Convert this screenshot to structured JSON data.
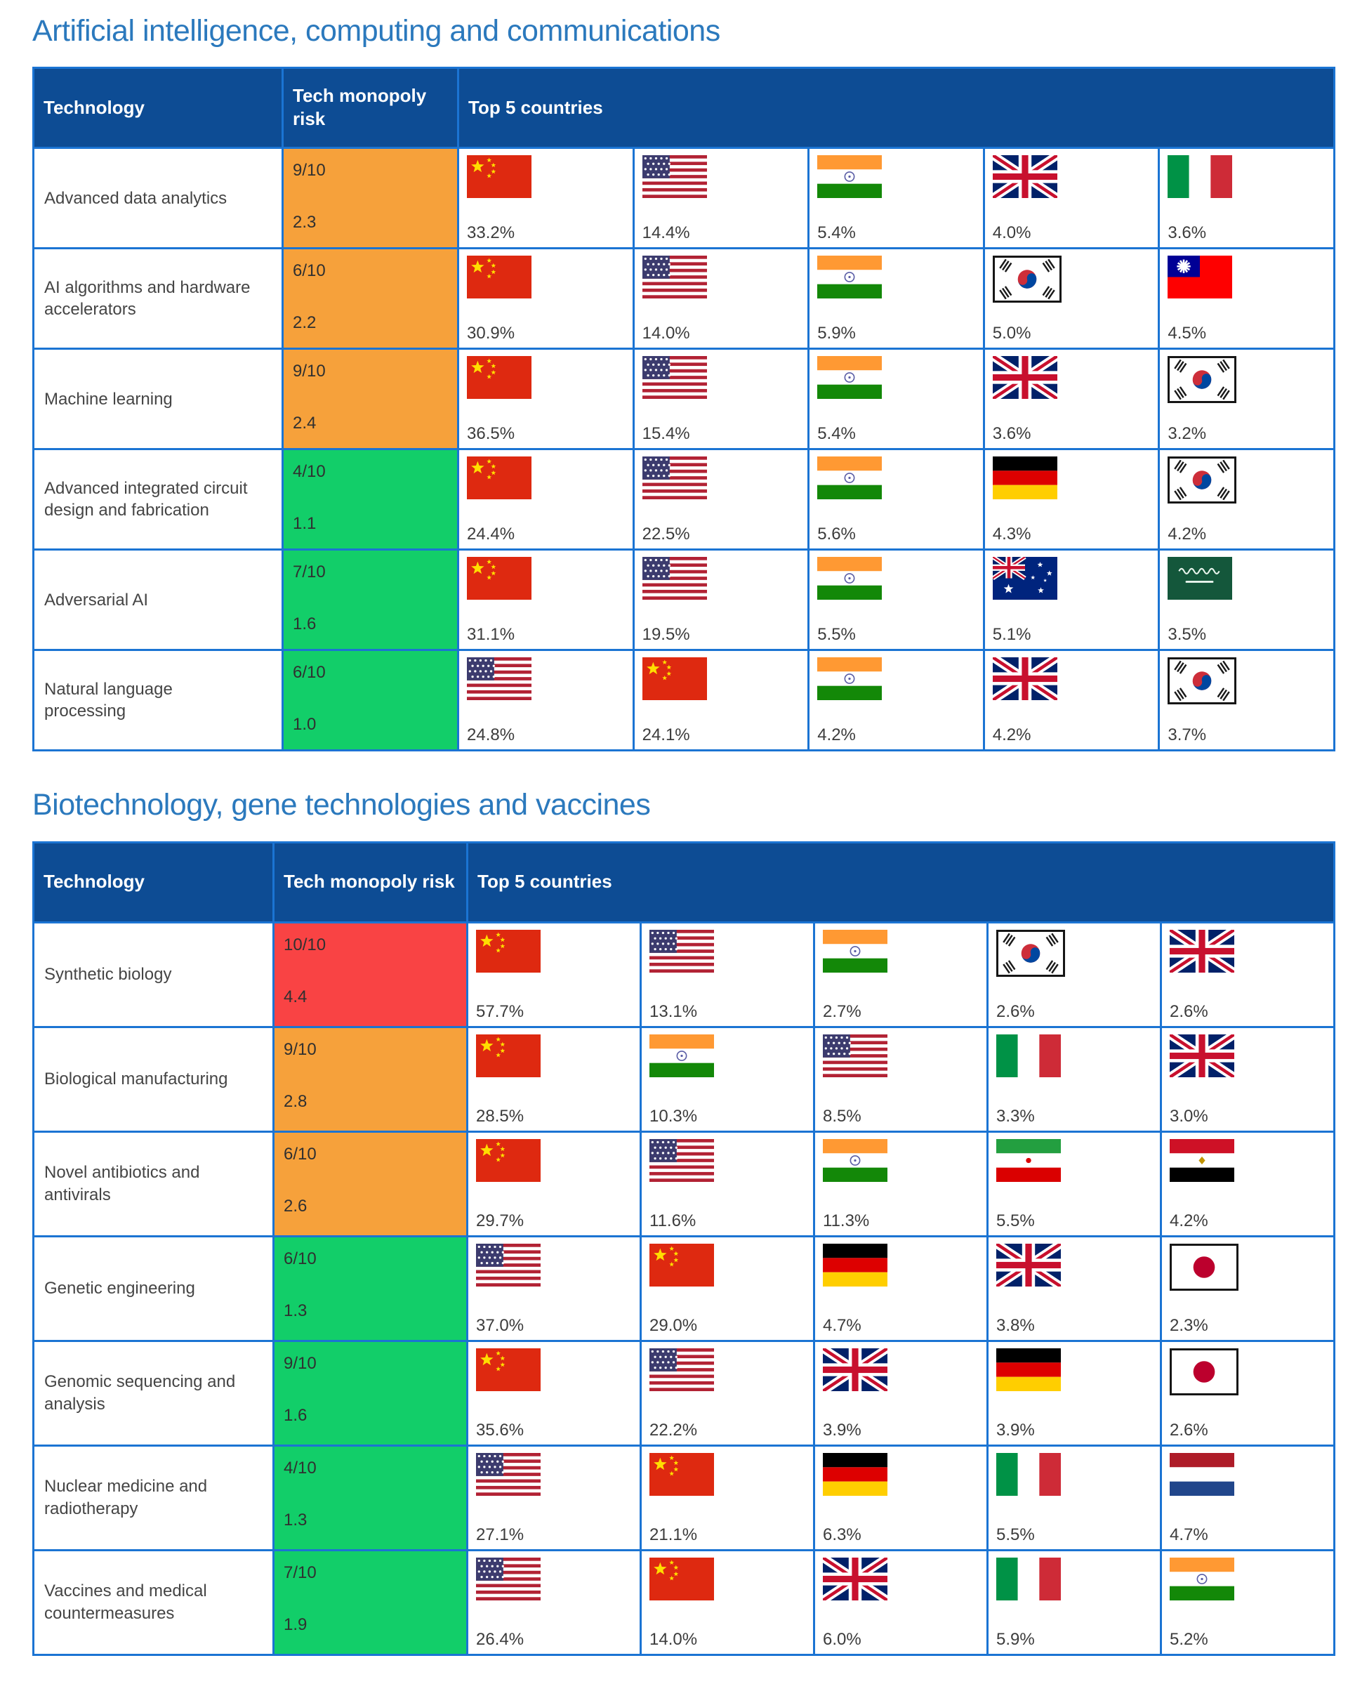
{
  "colors": {
    "header_bg": "#0D4C94",
    "border": "#1B74D3",
    "title": "#2B79BD",
    "text": "#454545",
    "risk_levels": {
      "orange": "#F6A13B",
      "green": "#12CE69",
      "red": "#F94344"
    }
  },
  "chart_data": [
    {
      "type": "table",
      "title": "Artificial intelligence, computing and communications",
      "headers": {
        "technology": "Technology",
        "risk": "Tech monopoly risk",
        "countries": "Top 5 countries"
      },
      "rows": [
        {
          "technology": "Advanced data analytics",
          "risk_score": "9/10",
          "risk_value": 2.3,
          "risk_color": "orange",
          "top5": [
            {
              "country": "China",
              "code": "cn",
              "share_pct": 33.2
            },
            {
              "country": "United States",
              "code": "us",
              "share_pct": 14.4
            },
            {
              "country": "India",
              "code": "in",
              "share_pct": 5.4
            },
            {
              "country": "United Kingdom",
              "code": "gb",
              "share_pct": 4.0
            },
            {
              "country": "Italy",
              "code": "it",
              "share_pct": 3.6
            }
          ]
        },
        {
          "technology": "AI algorithms and hardware accelerators",
          "risk_score": "6/10",
          "risk_value": 2.2,
          "risk_color": "orange",
          "top5": [
            {
              "country": "China",
              "code": "cn",
              "share_pct": 30.9
            },
            {
              "country": "United States",
              "code": "us",
              "share_pct": 14.0
            },
            {
              "country": "India",
              "code": "in",
              "share_pct": 5.9
            },
            {
              "country": "South Korea",
              "code": "kr",
              "share_pct": 5.0
            },
            {
              "country": "Taiwan",
              "code": "tw",
              "share_pct": 4.5
            }
          ]
        },
        {
          "technology": "Machine learning",
          "risk_score": "9/10",
          "risk_value": 2.4,
          "risk_color": "orange",
          "top5": [
            {
              "country": "China",
              "code": "cn",
              "share_pct": 36.5
            },
            {
              "country": "United States",
              "code": "us",
              "share_pct": 15.4
            },
            {
              "country": "India",
              "code": "in",
              "share_pct": 5.4
            },
            {
              "country": "United Kingdom",
              "code": "gb",
              "share_pct": 3.6
            },
            {
              "country": "South Korea",
              "code": "kr",
              "share_pct": 3.2
            }
          ]
        },
        {
          "technology": "Advanced integrated circuit design and fabrication",
          "risk_score": "4/10",
          "risk_value": 1.1,
          "risk_color": "green",
          "top5": [
            {
              "country": "China",
              "code": "cn",
              "share_pct": 24.4
            },
            {
              "country": "United States",
              "code": "us",
              "share_pct": 22.5
            },
            {
              "country": "India",
              "code": "in",
              "share_pct": 5.6
            },
            {
              "country": "Germany",
              "code": "de",
              "share_pct": 4.3
            },
            {
              "country": "South Korea",
              "code": "kr",
              "share_pct": 4.2
            }
          ]
        },
        {
          "technology": "Adversarial AI",
          "risk_score": "7/10",
          "risk_value": 1.6,
          "risk_color": "green",
          "top5": [
            {
              "country": "China",
              "code": "cn",
              "share_pct": 31.1
            },
            {
              "country": "United States",
              "code": "us",
              "share_pct": 19.5
            },
            {
              "country": "India",
              "code": "in",
              "share_pct": 5.5
            },
            {
              "country": "Australia",
              "code": "au",
              "share_pct": 5.1
            },
            {
              "country": "Saudi Arabia",
              "code": "sa",
              "share_pct": 3.5
            }
          ]
        },
        {
          "technology": "Natural language processing",
          "risk_score": "6/10",
          "risk_value": 1.0,
          "risk_color": "green",
          "top5": [
            {
              "country": "United States",
              "code": "us",
              "share_pct": 24.8
            },
            {
              "country": "China",
              "code": "cn",
              "share_pct": 24.1
            },
            {
              "country": "India",
              "code": "in",
              "share_pct": 4.2
            },
            {
              "country": "United Kingdom",
              "code": "gb",
              "share_pct": 4.2
            },
            {
              "country": "South Korea",
              "code": "kr",
              "share_pct": 3.7
            }
          ]
        }
      ]
    },
    {
      "type": "table",
      "title": "Biotechnology, gene technologies and vaccines",
      "headers": {
        "technology": "Technology",
        "risk": "Tech monopoly risk",
        "countries": "Top 5 countries"
      },
      "rows": [
        {
          "technology": "Synthetic biology",
          "risk_score": "10/10",
          "risk_value": 4.4,
          "risk_color": "red",
          "top5": [
            {
              "country": "China",
              "code": "cn",
              "share_pct": 57.7
            },
            {
              "country": "United States",
              "code": "us",
              "share_pct": 13.1
            },
            {
              "country": "India",
              "code": "in",
              "share_pct": 2.7
            },
            {
              "country": "South Korea",
              "code": "kr",
              "share_pct": 2.6
            },
            {
              "country": "United Kingdom",
              "code": "gb",
              "share_pct": 2.6
            }
          ]
        },
        {
          "technology": "Biological manufacturing",
          "risk_score": "9/10",
          "risk_value": 2.8,
          "risk_color": "orange",
          "top5": [
            {
              "country": "China",
              "code": "cn",
              "share_pct": 28.5
            },
            {
              "country": "India",
              "code": "in",
              "share_pct": 10.3
            },
            {
              "country": "United States",
              "code": "us",
              "share_pct": 8.5
            },
            {
              "country": "Italy",
              "code": "it",
              "share_pct": 3.3
            },
            {
              "country": "United Kingdom",
              "code": "gb",
              "share_pct": 3.0
            }
          ]
        },
        {
          "technology": "Novel antibiotics and antivirals",
          "risk_score": "6/10",
          "risk_value": 2.6,
          "risk_color": "orange",
          "top5": [
            {
              "country": "China",
              "code": "cn",
              "share_pct": 29.7
            },
            {
              "country": "United States",
              "code": "us",
              "share_pct": 11.6
            },
            {
              "country": "India",
              "code": "in",
              "share_pct": 11.3
            },
            {
              "country": "Iran",
              "code": "ir",
              "share_pct": 5.5
            },
            {
              "country": "Egypt",
              "code": "eg",
              "share_pct": 4.2
            }
          ]
        },
        {
          "technology": "Genetic engineering",
          "risk_score": "6/10",
          "risk_value": 1.3,
          "risk_color": "green",
          "top5": [
            {
              "country": "United States",
              "code": "us",
              "share_pct": 37.0
            },
            {
              "country": "China",
              "code": "cn",
              "share_pct": 29.0
            },
            {
              "country": "Germany",
              "code": "de",
              "share_pct": 4.7
            },
            {
              "country": "United Kingdom",
              "code": "gb",
              "share_pct": 3.8
            },
            {
              "country": "Japan",
              "code": "jp",
              "share_pct": 2.3
            }
          ]
        },
        {
          "technology": "Genomic sequencing and analysis",
          "risk_score": "9/10",
          "risk_value": 1.6,
          "risk_color": "green",
          "top5": [
            {
              "country": "China",
              "code": "cn",
              "share_pct": 35.6
            },
            {
              "country": "United States",
              "code": "us",
              "share_pct": 22.2
            },
            {
              "country": "United Kingdom",
              "code": "gb",
              "share_pct": 3.9
            },
            {
              "country": "Germany",
              "code": "de",
              "share_pct": 3.9
            },
            {
              "country": "Japan",
              "code": "jp",
              "share_pct": 2.6
            }
          ]
        },
        {
          "technology": "Nuclear medicine and radiotherapy",
          "risk_score": "4/10",
          "risk_value": 1.3,
          "risk_color": "green",
          "top5": [
            {
              "country": "United States",
              "code": "us",
              "share_pct": 27.1
            },
            {
              "country": "China",
              "code": "cn",
              "share_pct": 21.1
            },
            {
              "country": "Germany",
              "code": "de",
              "share_pct": 6.3
            },
            {
              "country": "Italy",
              "code": "it",
              "share_pct": 5.5
            },
            {
              "country": "Netherlands",
              "code": "nl",
              "share_pct": 4.7
            }
          ]
        },
        {
          "technology": "Vaccines and medical countermeasures",
          "risk_score": "7/10",
          "risk_value": 1.9,
          "risk_color": "green",
          "top5": [
            {
              "country": "United States",
              "code": "us",
              "share_pct": 26.4
            },
            {
              "country": "China",
              "code": "cn",
              "share_pct": 14.0
            },
            {
              "country": "United Kingdom",
              "code": "gb",
              "share_pct": 6.0
            },
            {
              "country": "Italy",
              "code": "it",
              "share_pct": 5.9
            },
            {
              "country": "India",
              "code": "in",
              "share_pct": 5.2
            }
          ]
        }
      ]
    }
  ]
}
